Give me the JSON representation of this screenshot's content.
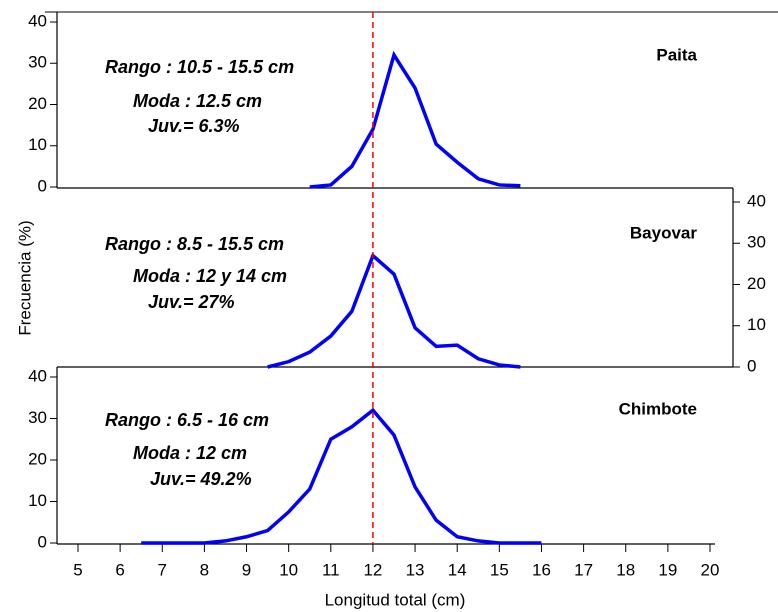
{
  "x_label": "Longitud total (cm)",
  "y_label": "Frecuencia (%)",
  "xlim": [
    5,
    20
  ],
  "xticks": [
    5,
    6,
    7,
    8,
    9,
    10,
    11,
    12,
    13,
    14,
    15,
    16,
    17,
    18,
    19,
    20
  ],
  "ref_line": {
    "x": 12,
    "color": "#ff0000"
  },
  "chart_data": [
    {
      "type": "line",
      "title": "Paita",
      "annotations": [
        "Rango : 10.5 - 15.5 cm",
        "Moda : 12.5 cm",
        "Juv.= 6.3%"
      ],
      "y_axis_side": "left",
      "ylim": [
        0,
        40
      ],
      "yticks": [
        0,
        10,
        20,
        30,
        40
      ],
      "color": "#0000ff",
      "x": [
        10.5,
        11,
        11.5,
        12,
        12.5,
        13,
        13.5,
        14,
        14.5,
        15,
        15.5
      ],
      "values": [
        0,
        0.5,
        5,
        14,
        32,
        24,
        10.4,
        6,
        2,
        0.5,
        0.3
      ]
    },
    {
      "type": "line",
      "title": "Bayovar",
      "annotations": [
        "Rango : 8.5 - 15.5 cm",
        "Moda : 12 y 14 cm",
        "Juv.= 27%"
      ],
      "y_axis_side": "right",
      "ylim": [
        0,
        40
      ],
      "yticks": [
        0,
        10,
        20,
        30,
        40
      ],
      "color": "#0000ff",
      "x": [
        9.5,
        10,
        10.5,
        11,
        11.5,
        12,
        12.5,
        13,
        13.5,
        14,
        14.5,
        15,
        15.5
      ],
      "values": [
        0,
        1.3,
        3.6,
        7.5,
        13.5,
        27,
        22.5,
        9.5,
        5,
        5.3,
        2,
        0.5,
        0
      ]
    },
    {
      "type": "line",
      "title": "Chimbote",
      "annotations": [
        "Rango : 6.5 - 16 cm",
        "Moda : 12 cm",
        "Juv.= 49.2%"
      ],
      "y_axis_side": "left",
      "ylim": [
        0,
        40
      ],
      "yticks": [
        0,
        10,
        20,
        30,
        40
      ],
      "color": "#0000ff",
      "x": [
        6.5,
        7,
        7.5,
        8,
        8.5,
        9,
        9.5,
        10,
        10.5,
        11,
        11.5,
        12,
        12.5,
        13,
        13.5,
        14,
        14.5,
        15,
        15.5,
        16
      ],
      "values": [
        0,
        0,
        0,
        0,
        0.5,
        1.5,
        3,
        7.5,
        13,
        25,
        28,
        32,
        26,
        13.5,
        5.5,
        1.5,
        0.5,
        0,
        0,
        0
      ]
    }
  ]
}
